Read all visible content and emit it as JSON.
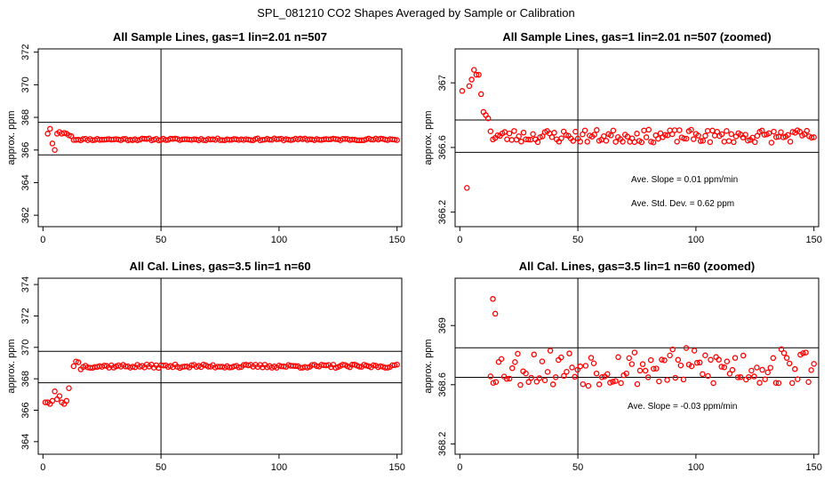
{
  "figure": {
    "title": "SPL_081210  CO2 Shapes Averaged by Sample or Calibration"
  },
  "chart_data": [
    {
      "type": "scatter",
      "title": "All Sample Lines, gas=1 lin=2.01 n=507",
      "xlabel": "",
      "ylabel": "approx. ppm",
      "xlim": [
        -2,
        152
      ],
      "ylim": [
        361.3,
        372.2
      ],
      "xticks": [
        0,
        50,
        100,
        150
      ],
      "yticks": [
        362,
        364,
        366,
        368,
        370,
        372
      ],
      "vline": 50,
      "hlines": [
        365.7,
        367.7
      ],
      "annotations": [],
      "gen": {
        "kind": "sample",
        "zoom": false,
        "seed": 11
      }
    },
    {
      "type": "scatter",
      "title": "All Sample Lines, gas=1 lin=2.01 n=507 (zoomed)",
      "xlabel": "",
      "ylabel": "approx. ppm",
      "xlim": [
        -2,
        152
      ],
      "ylim": [
        366.11,
        367.21
      ],
      "xticks": [
        0,
        50,
        100,
        150
      ],
      "yticks": [
        366.2,
        366.6,
        367.0
      ],
      "vline": 50,
      "hlines": [
        366.57,
        366.77
      ],
      "annotations": [
        "Ave. Slope =  0.01  ppm/min",
        "Ave. Std. Dev. =  0.62  ppm"
      ],
      "gen": {
        "kind": "sample",
        "zoom": true,
        "seed": 23
      }
    },
    {
      "type": "scatter",
      "title": "All Cal. Lines, gas=3.5 lin=1 n=60",
      "xlabel": "",
      "ylabel": "approx. ppm",
      "xlim": [
        -2,
        152
      ],
      "ylim": [
        363.2,
        374.4
      ],
      "xticks": [
        0,
        50,
        100,
        150
      ],
      "yticks": [
        364,
        366,
        368,
        370,
        372,
        374
      ],
      "vline": 50,
      "hlines": [
        367.75,
        369.75
      ],
      "annotations": [],
      "gen": {
        "kind": "cal",
        "zoom": false,
        "seed": 37
      }
    },
    {
      "type": "scatter",
      "title": "All Cal. Lines, gas=3.5 lin=1 n=60 (zoomed)",
      "xlabel": "",
      "ylabel": "approx. ppm",
      "xlim": [
        -2,
        152
      ],
      "ylim": [
        368.13,
        369.32
      ],
      "xticks": [
        0,
        50,
        100,
        150
      ],
      "yticks": [
        368.2,
        368.6,
        369.0
      ],
      "vline": 50,
      "hlines": [
        368.65,
        368.85
      ],
      "annotations": [
        "Ave. Slope =  -0.03  ppm/min"
      ],
      "gen": {
        "kind": "cal",
        "zoom": true,
        "seed": 53
      }
    }
  ]
}
